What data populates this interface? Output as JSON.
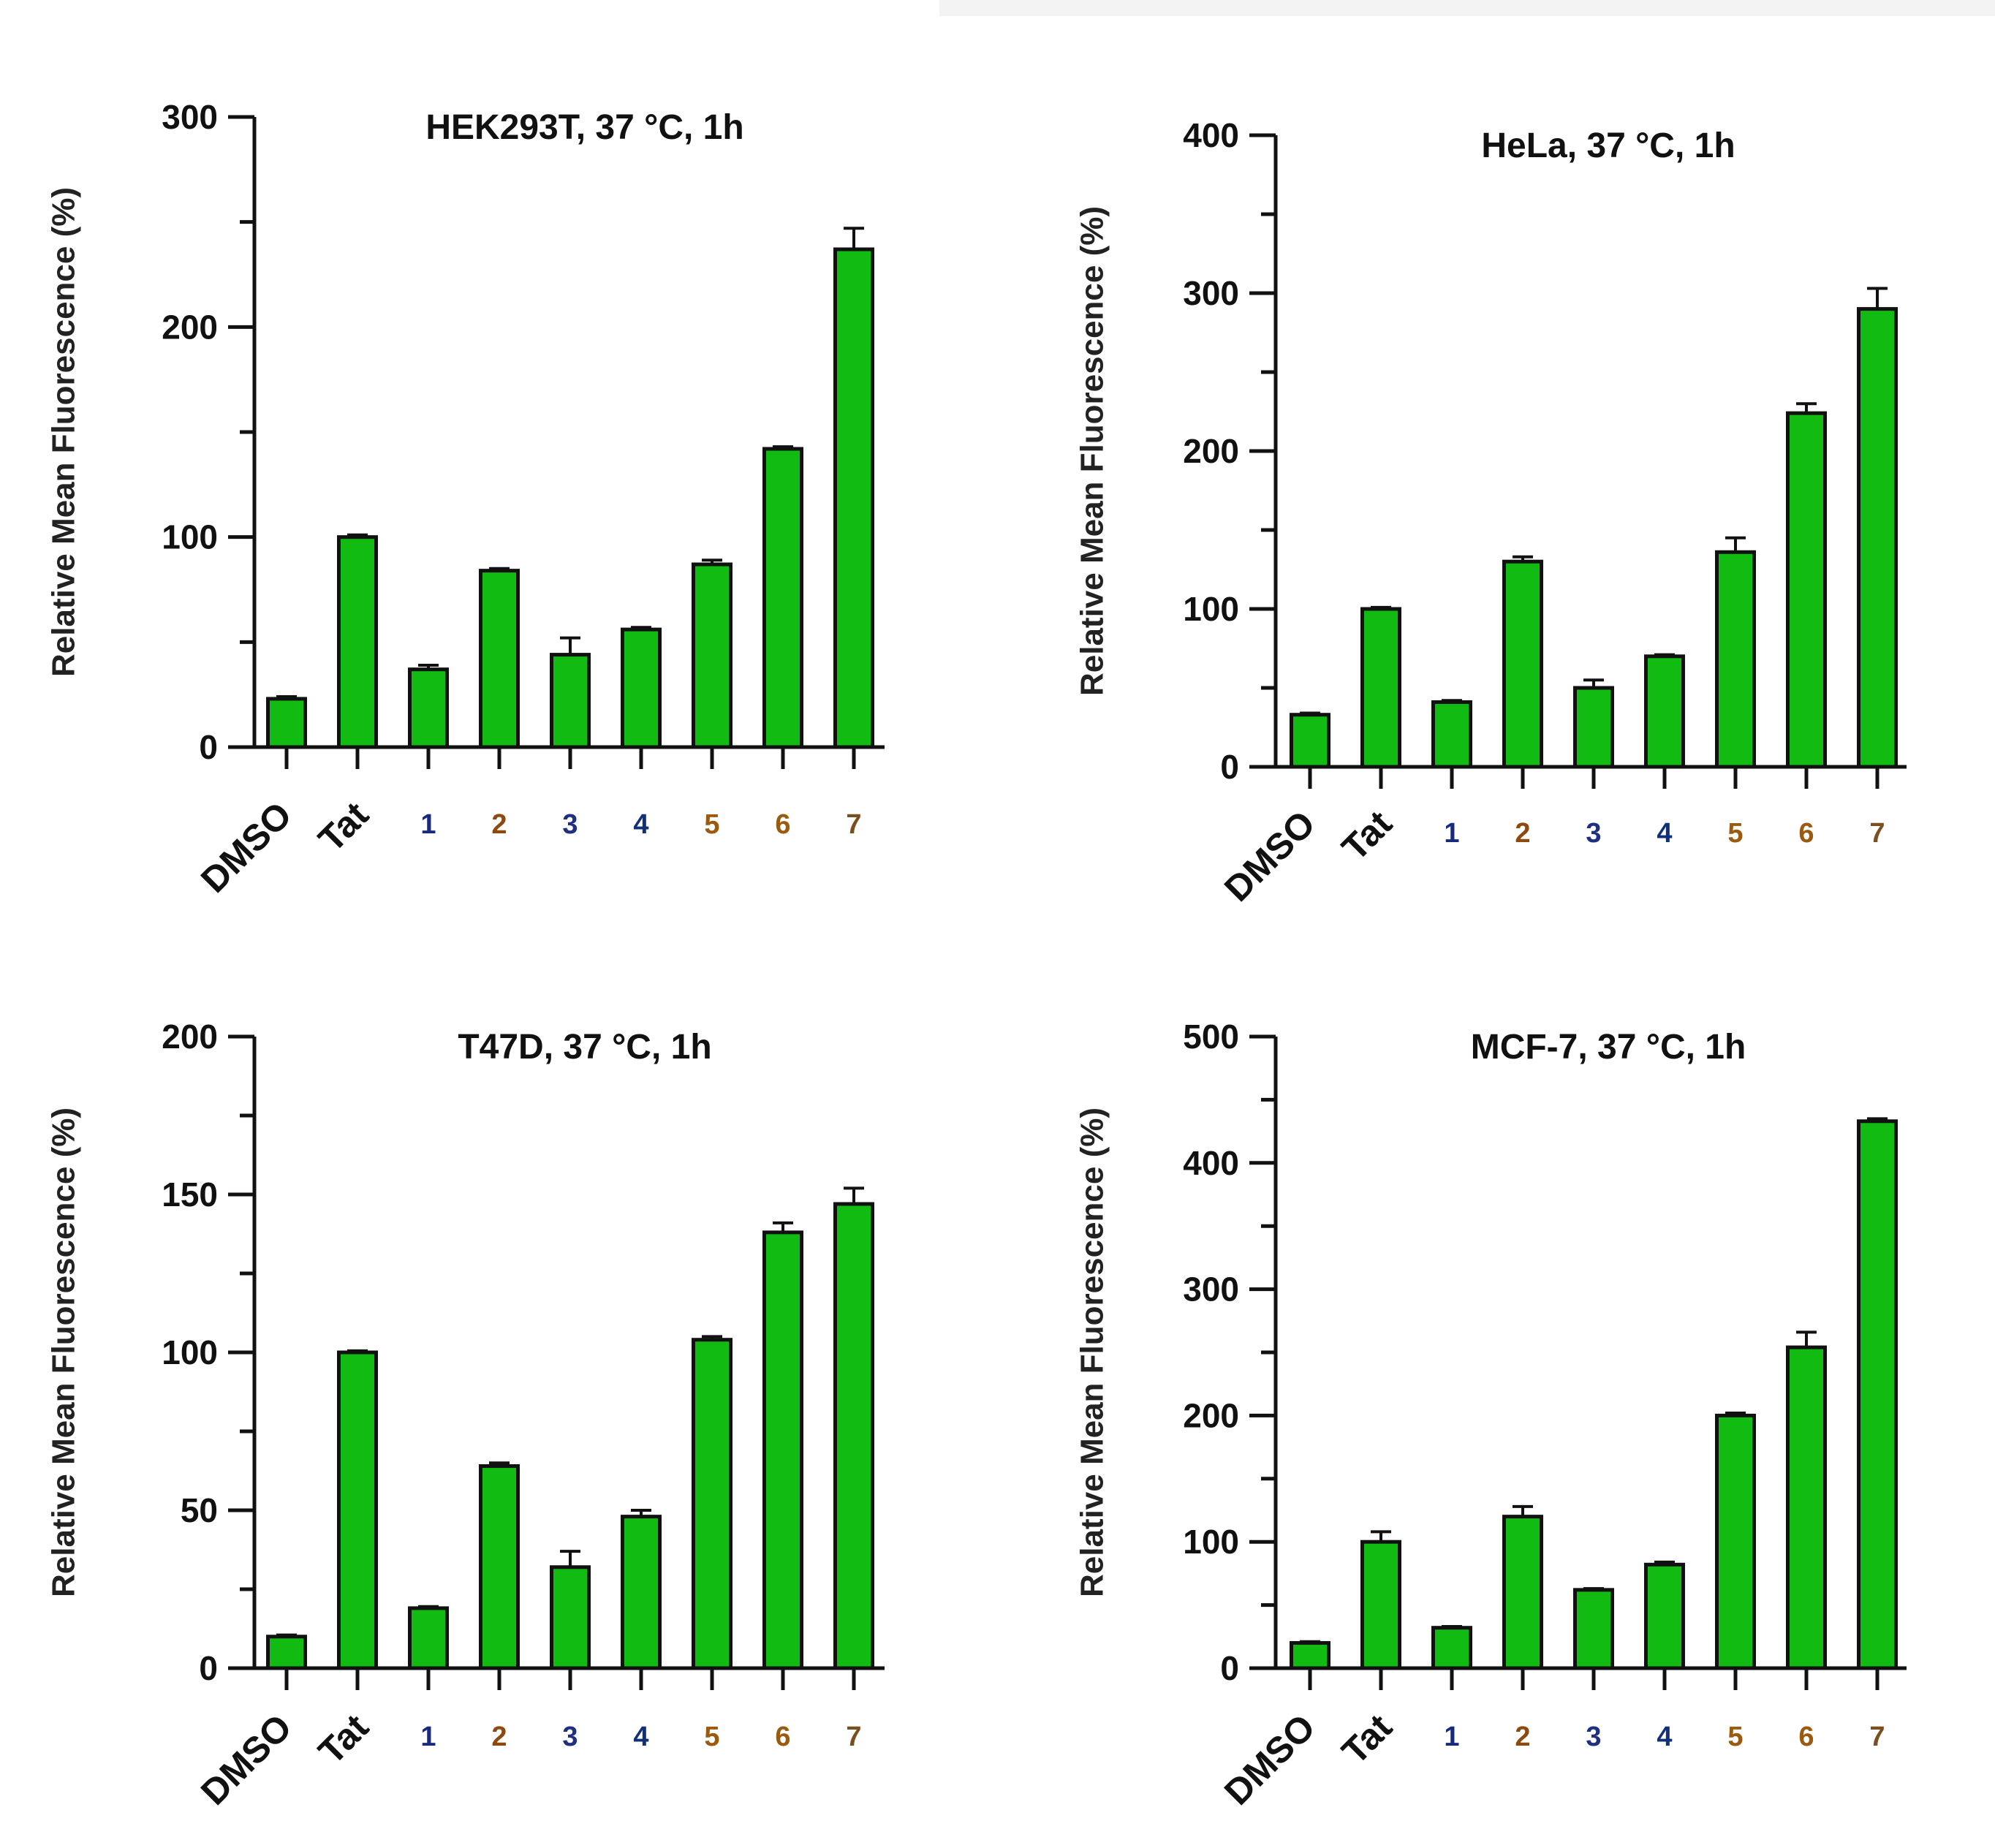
{
  "chart_data": [
    {
      "type": "bar",
      "title": "HEK293T,  37 °C, 1h",
      "ylabel": "Relative Mean Fluorescence (%)",
      "xlabel": "",
      "ylim": [
        0,
        300
      ],
      "yticks": [
        0,
        100,
        200,
        300
      ],
      "categories": [
        "DMSO",
        "Tat",
        "1",
        "2",
        "3",
        "4",
        "5",
        "6",
        "7"
      ],
      "values": [
        23,
        100,
        37,
        84,
        44,
        56,
        87,
        142,
        237
      ],
      "errors": [
        1,
        1,
        2,
        1,
        8,
        1,
        2,
        1,
        10
      ],
      "bar_color": "#11bb11"
    },
    {
      "type": "bar",
      "title": "HeLa,  37 °C, 1h",
      "ylabel": "Relative Mean Fluorescence (%)",
      "xlabel": "",
      "ylim": [
        0,
        400
      ],
      "yticks": [
        0,
        100,
        200,
        300,
        400
      ],
      "categories": [
        "DMSO",
        "Tat",
        "1",
        "2",
        "3",
        "4",
        "5",
        "6",
        "7"
      ],
      "values": [
        33,
        100,
        41,
        130,
        50,
        70,
        136,
        224,
        290
      ],
      "errors": [
        1,
        1,
        1,
        3,
        5,
        1,
        9,
        6,
        13
      ],
      "bar_color": "#11bb11"
    },
    {
      "type": "bar",
      "title": "T47D,  37 °C, 1h",
      "ylabel": "Relative Mean Fluorescence (%)",
      "xlabel": "",
      "ylim": [
        0,
        200
      ],
      "yticks": [
        0,
        50,
        100,
        150,
        200
      ],
      "categories": [
        "DMSO",
        "Tat",
        "1",
        "2",
        "3",
        "4",
        "5",
        "6",
        "7"
      ],
      "values": [
        10,
        100,
        19,
        64,
        32,
        48,
        104,
        138,
        147
      ],
      "errors": [
        0.5,
        0.5,
        0.5,
        1,
        5,
        2,
        1,
        3,
        5
      ],
      "bar_color": "#11bb11"
    },
    {
      "type": "bar",
      "title": "MCF-7,  37 °C, 1h",
      "ylabel": "Relative Mean Fluorescence (%)",
      "xlabel": "",
      "ylim": [
        0,
        500
      ],
      "yticks": [
        0,
        100,
        200,
        300,
        400,
        500
      ],
      "categories": [
        "DMSO",
        "Tat",
        "1",
        "2",
        "3",
        "4",
        "5",
        "6",
        "7"
      ],
      "values": [
        20,
        100,
        32,
        120,
        62,
        82,
        200,
        254,
        433
      ],
      "errors": [
        1,
        8,
        1,
        8,
        1,
        2,
        2,
        12,
        2
      ],
      "bar_color": "#11bb11"
    }
  ],
  "category_label_colors": [
    "#111111",
    "#111111",
    "#1a2a7a",
    "#8a4a10",
    "#203080",
    "#10307a",
    "#9a5a10",
    "#9a5a10",
    "#7a5020"
  ]
}
